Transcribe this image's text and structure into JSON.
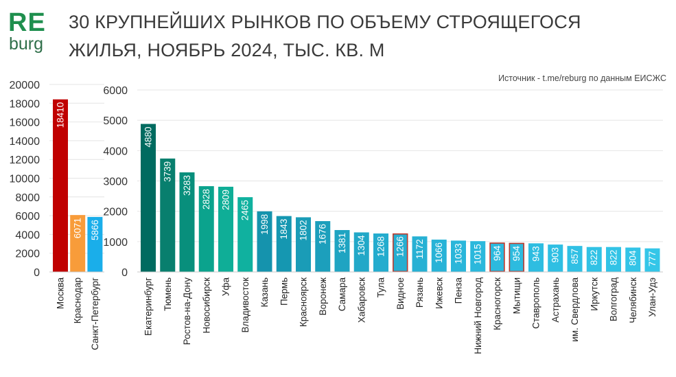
{
  "logo": {
    "line1": "RE",
    "line2": "burg",
    "color1": "#1f8f4e",
    "color2": "#2f6f4a"
  },
  "title": "30 КРУПНЕЙШИХ РЫНКОВ ПО ОБЪЕМУ СТРОЯЩЕГОСЯ ЖИЛЬЯ, НОЯБРЬ 2024, ТЫС. КВ. М",
  "source": "Источник - t.me/reburg по данным ЕИСЖС",
  "chart_data": [
    {
      "type": "bar",
      "categories": [
        "Москва",
        "Краснодар",
        "Санкт-Петербург"
      ],
      "values": [
        18410,
        6071,
        5866
      ],
      "data_labels": [
        "18410",
        "6071",
        "5866"
      ],
      "ylim": [
        0,
        20000
      ],
      "yticks": [
        0,
        2000,
        4000,
        6000,
        8000,
        10000,
        12000,
        14000,
        16000,
        18000,
        20000
      ],
      "ytick_labels": [
        "0",
        "2000",
        "4000",
        "6000",
        "8000",
        "10000",
        "12000",
        "14000",
        "16000",
        "18000",
        "20000"
      ],
      "colors": [
        "#c00000",
        "#f89c3a",
        "#1aaeea"
      ],
      "grid": true,
      "title": "",
      "xlabel": "",
      "ylabel": ""
    },
    {
      "type": "bar",
      "categories": [
        "Екатеринбург",
        "Тюмень",
        "Ростов-на-Дону",
        "Новосибирск",
        "Уфа",
        "Владивосток",
        "Казань",
        "Пермь",
        "Красноярск",
        "Воронеж",
        "Самара",
        "Хабаровск",
        "Тула",
        "Видное",
        "Рязань",
        "Ижевск",
        "Пенза",
        "Нижний Новгород",
        "Красногорск",
        "Мытищи",
        "Ставрополь",
        "Астрахань",
        "им. Свердлова",
        "Иркутск",
        "Волгоград",
        "Челябинск",
        "Улан-Удэ"
      ],
      "values": [
        4880,
        3739,
        3283,
        2828,
        2809,
        2465,
        1998,
        1843,
        1802,
        1676,
        1381,
        1304,
        1268,
        1266,
        1172,
        1066,
        1033,
        1015,
        964,
        954,
        943,
        903,
        857,
        822,
        822,
        804,
        777
      ],
      "data_labels": [
        "4880",
        "3739",
        "3283",
        "2828",
        "2809",
        "2465",
        "1998",
        "1843",
        "1802",
        "1676",
        "1381",
        "1304",
        "1268",
        "1266",
        "1172",
        "1066",
        "1033",
        "1015",
        "964",
        "954",
        "943",
        "903",
        "857",
        "822",
        "822",
        "804",
        "777"
      ],
      "ylim": [
        0,
        6000
      ],
      "yticks": [
        0,
        1000,
        2000,
        3000,
        4000,
        5000,
        6000
      ],
      "ytick_labels": [
        "0",
        "1000",
        "2000",
        "3000",
        "4000",
        "5000",
        "6000"
      ],
      "colors": [
        "#006b60",
        "#087f6e",
        "#088f7c",
        "#0ba38d",
        "#0fae97",
        "#10b19f",
        "#1593ad",
        "#1597b1",
        "#1a9cb7",
        "#1c9fbc",
        "#1fa4c2",
        "#22a8c8",
        "#24acce",
        "#26aed1",
        "#27b1d4",
        "#28b3d7",
        "#2ab6da",
        "#2bb8dc",
        "#2cbade",
        "#2dbbdf",
        "#2ebde1",
        "#2fbfe3",
        "#30c0e4",
        "#31c2e5",
        "#32c3e6",
        "#33c4e7",
        "#34c6e8"
      ],
      "highlighted": [
        "Видное",
        "Красногорск",
        "Мытищи"
      ],
      "highlight_color": "#c0392b",
      "grid": true,
      "title": "",
      "xlabel": "",
      "ylabel": ""
    }
  ]
}
